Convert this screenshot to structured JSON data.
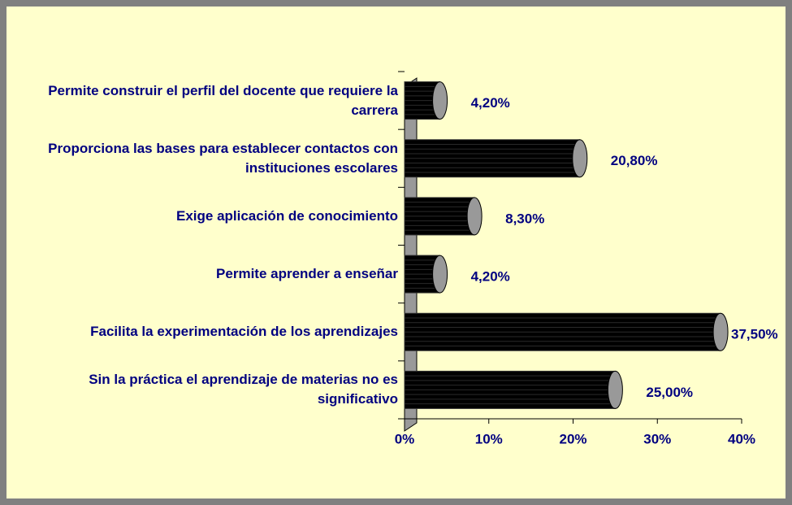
{
  "chart_data": {
    "type": "barh",
    "categories": [
      "Permite construir el perfil del docente que requiere la carrera",
      "Proporciona las bases para establecer contactos con instituciones escolares",
      "Exige aplicación de conocimiento",
      "Permite aprender a enseñar",
      "Facilita la experimentación de los aprendizajes",
      "Sin la práctica el aprendizaje de materias no es significativo"
    ],
    "values": [
      4.2,
      20.8,
      8.3,
      4.2,
      37.5,
      25.0
    ],
    "value_labels": [
      "4,20%",
      "20,80%",
      "8,30%",
      "4,20%",
      "37,50%",
      "25,00%"
    ],
    "color": "#000000",
    "xlim": [
      0,
      40
    ],
    "xticks": [
      {
        "value": 0,
        "label": "0%"
      },
      {
        "value": 10,
        "label": "10%"
      },
      {
        "value": 20,
        "label": "20%"
      },
      {
        "value": 30,
        "label": "30%"
      },
      {
        "value": 40,
        "label": "40%"
      }
    ]
  }
}
